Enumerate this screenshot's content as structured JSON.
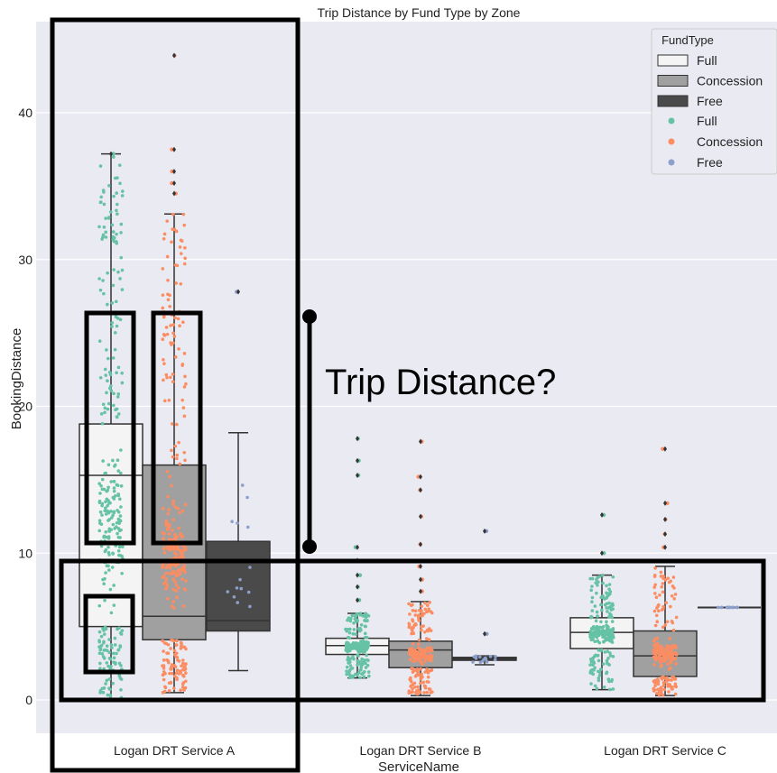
{
  "chart_data": {
    "type": "box",
    "title": "Trip Distance by Fund Type by Zone",
    "xlabel": "ServiceName",
    "ylabel": "BookingDistance",
    "ylim": [
      -5,
      46
    ],
    "yticks": [
      0,
      10,
      20,
      30,
      40
    ],
    "categories": [
      "Logan DRT Service A",
      "Logan DRT Service B",
      "Logan DRT Service C"
    ],
    "grid": true,
    "legend": {
      "title": "FundType",
      "placement": "top-right",
      "box_entries": [
        {
          "label": "Full",
          "color": "#f4f4f4"
        },
        {
          "label": "Concession",
          "color": "#a0a0a0"
        },
        {
          "label": "Free",
          "color": "#4a4a4a"
        }
      ],
      "point_entries": [
        {
          "label": "Full",
          "color": "#66c2a5"
        },
        {
          "label": "Concession",
          "color": "#fc8d62"
        },
        {
          "label": "Free",
          "color": "#8da0cb"
        }
      ]
    },
    "series": [
      {
        "name": "Full",
        "box_color": "#f4f4f4",
        "point_color": "#66c2a5",
        "boxes": [
          {
            "category": "Logan DRT Service A",
            "whisker_low": 0,
            "q1": 5.0,
            "median": 15.3,
            "q3": 18.8,
            "whisker_high": 37.2,
            "outliers": [
              37.2
            ]
          },
          {
            "category": "Logan DRT Service B",
            "whisker_low": 1.5,
            "q1": 3.1,
            "median": 3.7,
            "q3": 4.2,
            "whisker_high": 5.9,
            "outliers": [
              6.8,
              7.7,
              8.5,
              9.5,
              10.4,
              15.3,
              16.3,
              17.8
            ]
          },
          {
            "category": "Logan DRT Service C",
            "whisker_low": 0.7,
            "q1": 3.5,
            "median": 4.6,
            "q3": 5.6,
            "whisker_high": 8.5,
            "outliers": [
              10.0,
              12.6
            ]
          }
        ]
      },
      {
        "name": "Concession",
        "box_color": "#a0a0a0",
        "point_color": "#fc8d62",
        "boxes": [
          {
            "category": "Logan DRT Service A",
            "whisker_low": 0.5,
            "q1": 4.1,
            "median": 5.7,
            "q3": 16.0,
            "whisker_high": 33.1,
            "outliers": [
              34.5,
              35.2,
              36.0,
              37.5,
              43.9
            ]
          },
          {
            "category": "Logan DRT Service B",
            "whisker_low": 0.3,
            "q1": 2.2,
            "median": 3.4,
            "q3": 4.0,
            "whisker_high": 6.7,
            "outliers": [
              7.4,
              8.2,
              9.1,
              10.6,
              12.5,
              14.3,
              15.2,
              17.6
            ]
          },
          {
            "category": "Logan DRT Service C",
            "whisker_low": 0.3,
            "q1": 1.6,
            "median": 3.0,
            "q3": 4.7,
            "whisker_high": 9.1,
            "outliers": [
              10.4,
              11.3,
              12.3,
              13.4,
              17.1
            ]
          }
        ]
      },
      {
        "name": "Free",
        "box_color": "#4a4a4a",
        "point_color": "#8da0cb",
        "boxes": [
          {
            "category": "Logan DRT Service A",
            "whisker_low": 2.0,
            "q1": 4.7,
            "median": 5.4,
            "q3": 10.8,
            "whisker_high": 18.2,
            "outliers": [
              27.8
            ]
          },
          {
            "category": "Logan DRT Service B",
            "whisker_low": 2.4,
            "q1": 2.7,
            "median": 2.8,
            "q3": 2.9,
            "whisker_high": 3.0,
            "outliers": [
              4.5,
              11.5
            ]
          },
          {
            "category": "Logan DRT Service C",
            "whisker_low": 6.3,
            "q1": 6.3,
            "median": 6.3,
            "q3": 6.3,
            "whisker_high": 6.3,
            "outliers": []
          }
        ]
      }
    ],
    "annotations": [
      {
        "text": "Trip Distance?"
      }
    ]
  }
}
